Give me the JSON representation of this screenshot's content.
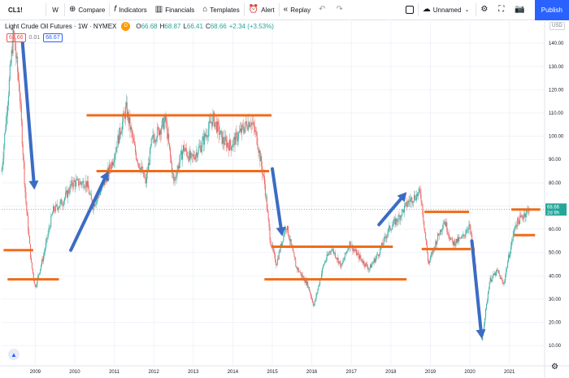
{
  "toolbar": {
    "symbol": "CL1!",
    "interval": "W",
    "compare": "Compare",
    "indicators": "Indicators",
    "financials": "Financials",
    "templates": "Templates",
    "alert": "Alert",
    "replay": "Replay",
    "layout_name": "Unnamed",
    "publish": "Publish"
  },
  "legend": {
    "title": "Light Crude Oil Futures · 1W · NYMEX",
    "badge": "D",
    "open_label": "O",
    "open": "66.68",
    "high_label": "H",
    "high": "68.87",
    "low_label": "L",
    "low": "66.41",
    "close_label": "C",
    "close": "68.66",
    "change": "+2.34 (+3.53%)"
  },
  "price_boxes": {
    "sell": "68.66",
    "spread": "0.01",
    "buy": "68.67"
  },
  "currency": "USD",
  "last_price": {
    "value": "68.66",
    "countdown": "2d 9h",
    "color": "#26a69a"
  },
  "colors": {
    "support_resistance": "#ef6c1a",
    "arrow": "#3b6cc4",
    "candle_up": "#26a69a",
    "candle_down": "#ef5350",
    "accent": "#2962ff"
  },
  "chart_data": {
    "type": "candlestick",
    "title": "Light Crude Oil Futures · 1W · NYMEX",
    "y_ticks": [
      "140.00",
      "130.00",
      "120.00",
      "110.00",
      "100.00",
      "90.00",
      "80.00",
      "70.00",
      "60.00",
      "50.00",
      "40.00",
      "30.00",
      "20.00",
      "10.00"
    ],
    "x_ticks": [
      "2009",
      "2010",
      "2011",
      "2012",
      "2013",
      "2014",
      "2015",
      "2016",
      "2017",
      "2018",
      "2019",
      "2020",
      "2021"
    ],
    "ylim": [
      2,
      146
    ],
    "xlim": [
      2008.15,
      2021.85
    ],
    "price_path": [
      [
        2008.15,
        85
      ],
      [
        2008.3,
        115
      ],
      [
        2008.45,
        145
      ],
      [
        2008.6,
        120
      ],
      [
        2008.75,
        75
      ],
      [
        2008.9,
        45
      ],
      [
        2009.0,
        35
      ],
      [
        2009.2,
        48
      ],
      [
        2009.45,
        68
      ],
      [
        2009.7,
        72
      ],
      [
        2009.95,
        80
      ],
      [
        2010.3,
        80
      ],
      [
        2010.45,
        70
      ],
      [
        2010.7,
        78
      ],
      [
        2010.95,
        89
      ],
      [
        2011.3,
        112
      ],
      [
        2011.55,
        92
      ],
      [
        2011.8,
        80
      ],
      [
        2011.95,
        98
      ],
      [
        2012.3,
        107
      ],
      [
        2012.5,
        80
      ],
      [
        2012.75,
        95
      ],
      [
        2012.95,
        90
      ],
      [
        2013.2,
        96
      ],
      [
        2013.5,
        108
      ],
      [
        2013.75,
        98
      ],
      [
        2013.95,
        96
      ],
      [
        2014.2,
        102
      ],
      [
        2014.45,
        107
      ],
      [
        2014.6,
        100
      ],
      [
        2014.8,
        80
      ],
      [
        2014.95,
        55
      ],
      [
        2015.1,
        45
      ],
      [
        2015.35,
        62
      ],
      [
        2015.6,
        44
      ],
      [
        2015.9,
        36
      ],
      [
        2016.05,
        27
      ],
      [
        2016.3,
        45
      ],
      [
        2016.5,
        52
      ],
      [
        2016.75,
        44
      ],
      [
        2016.95,
        54
      ],
      [
        2017.2,
        48
      ],
      [
        2017.45,
        43
      ],
      [
        2017.7,
        50
      ],
      [
        2017.95,
        60
      ],
      [
        2018.2,
        65
      ],
      [
        2018.45,
        72
      ],
      [
        2018.75,
        76
      ],
      [
        2018.95,
        45
      ],
      [
        2019.15,
        55
      ],
      [
        2019.35,
        64
      ],
      [
        2019.55,
        54
      ],
      [
        2019.8,
        56
      ],
      [
        2019.98,
        62
      ],
      [
        2020.1,
        50
      ],
      [
        2020.2,
        30
      ],
      [
        2020.3,
        12
      ],
      [
        2020.5,
        38
      ],
      [
        2020.7,
        42
      ],
      [
        2020.85,
        36
      ],
      [
        2020.98,
        48
      ],
      [
        2021.15,
        62
      ],
      [
        2021.35,
        66
      ],
      [
        2021.5,
        68.66
      ]
    ],
    "levels": [
      {
        "price": 51,
        "x0": 2008.2,
        "x1": 2008.95
      },
      {
        "price": 38.5,
        "x0": 2008.3,
        "x1": 2009.6
      },
      {
        "price": 109,
        "x0": 2010.3,
        "x1": 2014.98
      },
      {
        "price": 85,
        "x0": 2010.55,
        "x1": 2014.92
      },
      {
        "price": 52.5,
        "x0": 2014.98,
        "x1": 2018.05
      },
      {
        "price": 38.5,
        "x0": 2014.8,
        "x1": 2018.4
      },
      {
        "price": 67.5,
        "x0": 2018.85,
        "x1": 2019.98
      },
      {
        "price": 51.5,
        "x0": 2018.78,
        "x1": 2020.02
      },
      {
        "price": 68.5,
        "x0": 2021.05,
        "x1": 2021.78
      },
      {
        "price": 57.5,
        "x0": 2021.12,
        "x1": 2021.65
      }
    ],
    "arrows": [
      {
        "x0": 2008.68,
        "y0": 140,
        "x1": 2008.98,
        "y1": 77
      },
      {
        "x0": 2009.9,
        "y0": 51,
        "x1": 2010.85,
        "y1": 85
      },
      {
        "x0": 2015.0,
        "y0": 86,
        "x1": 2015.25,
        "y1": 57
      },
      {
        "x0": 2017.7,
        "y0": 62,
        "x1": 2018.4,
        "y1": 76
      },
      {
        "x0": 2020.05,
        "y0": 55,
        "x1": 2020.3,
        "y1": 13
      }
    ]
  }
}
